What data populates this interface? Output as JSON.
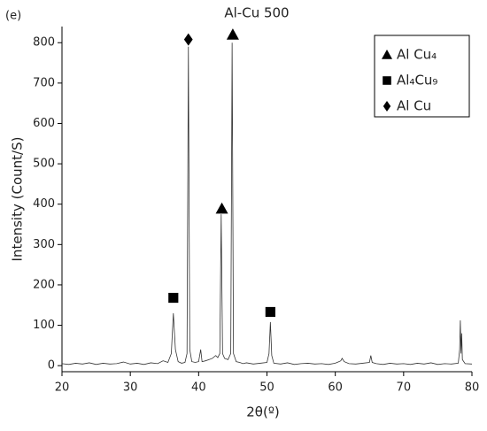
{
  "chart_data": {
    "type": "line",
    "title": "Al-Cu 500",
    "panel_label": "(e)",
    "x_label": "2θ(º)",
    "y_label": "Intensity (Count/S)",
    "xlim": [
      20,
      80
    ],
    "xticks": [
      20,
      30,
      40,
      50,
      60,
      70,
      80
    ],
    "ylim": [
      -15,
      840
    ],
    "yticks": [
      0,
      100,
      200,
      300,
      400,
      500,
      600,
      700,
      800
    ],
    "series": [
      {
        "color": "#333333",
        "x": [
          20,
          21,
          22,
          23,
          24,
          25,
          26,
          27,
          28,
          29,
          30,
          31,
          32,
          33,
          34,
          34.8,
          35.5,
          36.0,
          36.3,
          36.6,
          37,
          37.5,
          38.0,
          38.3,
          38.5,
          38.7,
          39.0,
          39.5,
          40.0,
          40.3,
          40.5,
          41,
          41.5,
          42,
          42.5,
          42.8,
          43.1,
          43.3,
          43.5,
          43.8,
          44.3,
          44.7,
          44.9,
          45.1,
          45.5,
          46,
          46.5,
          47,
          48,
          49,
          50,
          50.3,
          50.5,
          50.7,
          51,
          52,
          53,
          54,
          55,
          56,
          57,
          58,
          59,
          60,
          60.8,
          61,
          61.3,
          62,
          63,
          64,
          65,
          65.2,
          65.4,
          66,
          67,
          68,
          69,
          70,
          71,
          72,
          73,
          74,
          75,
          76,
          77,
          78,
          78.2,
          78.3,
          78.4,
          78.5,
          78.6,
          79,
          80
        ],
        "values": [
          5,
          3,
          6,
          4,
          7,
          3,
          6,
          4,
          5,
          9,
          4,
          6,
          3,
          7,
          5,
          12,
          8,
          30,
          130,
          40,
          10,
          6,
          8,
          30,
          790,
          40,
          10,
          8,
          10,
          40,
          10,
          12,
          15,
          18,
          25,
          20,
          30,
          375,
          30,
          18,
          15,
          30,
          800,
          30,
          10,
          8,
          5,
          7,
          4,
          6,
          8,
          30,
          108,
          25,
          6,
          4,
          7,
          3,
          5,
          6,
          4,
          5,
          3,
          6,
          12,
          18,
          10,
          5,
          4,
          6,
          8,
          25,
          8,
          5,
          3,
          6,
          4,
          5,
          3,
          6,
          4,
          7,
          3,
          5,
          4,
          6,
          40,
          112,
          30,
          80,
          15,
          5,
          4
        ]
      },
      {
        "name": "Al Cu₄",
        "marker": "triangle",
        "color": "#000000",
        "x": [
          43.4,
          45.0
        ],
        "values": [
          389,
          820
        ]
      },
      {
        "name": "Al₄Cu₉",
        "marker": "square",
        "color": "#000000",
        "x": [
          36.3,
          50.5
        ],
        "values": [
          168,
          133
        ]
      },
      {
        "name": "Al Cu",
        "marker": "diamond",
        "color": "#000000",
        "x": [
          38.5
        ],
        "values": [
          808
        ]
      }
    ]
  }
}
